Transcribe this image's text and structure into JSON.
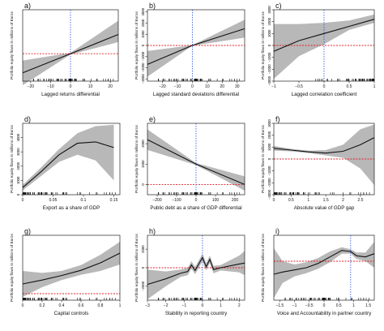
{
  "figure": {
    "ylabel": "Portfolio equity flows in millions of Euros",
    "colors": {
      "band": "#b8b8b8",
      "line": "#111111",
      "zero_ref": "#e0202a",
      "mean_ref": "#2a4fd8",
      "axis": "#222222"
    }
  },
  "chart_data": [
    {
      "panel": "a)",
      "type": "line",
      "xlabel": "Lagged returns differential",
      "xlim": [
        -24,
        24
      ],
      "ylim": [
        -1000,
        1600
      ],
      "xticks": [
        -20,
        -10,
        0,
        10,
        20
      ],
      "yticks": [],
      "x": [
        -24,
        0,
        24
      ],
      "y": [
        -700,
        0,
        700
      ],
      "lower": [
        -1150,
        -30,
        420
      ],
      "upper": [
        -250,
        30,
        1200
      ],
      "hline": 0,
      "vline": 0,
      "rug": "center"
    },
    {
      "panel": "b)",
      "type": "line",
      "xlabel": "Lagged standard deviations differential",
      "xlim": [
        -30,
        35
      ],
      "ylim": [
        -3200,
        3200
      ],
      "xticks": [
        -20,
        -10,
        0,
        10,
        20,
        30
      ],
      "yticks": [
        -3000,
        -2000,
        -1000,
        0,
        1000,
        2000,
        3000
      ],
      "x": [
        -30,
        0,
        35
      ],
      "y": [
        -1700,
        0,
        1500
      ],
      "lower": [
        -2800,
        -30,
        700
      ],
      "upper": [
        -500,
        30,
        2300
      ],
      "hline": 0,
      "vline": 0,
      "rug": "center"
    },
    {
      "panel": "c)",
      "type": "line",
      "xlabel": "Lagged correlation coefficient",
      "xlim": [
        -1,
        1
      ],
      "ylim": [
        -3000,
        3000
      ],
      "xticks": [
        -1,
        -0.5,
        0,
        0.5,
        1
      ],
      "yticks": [
        -3000,
        -2000,
        -1000,
        0,
        1000,
        2000,
        3000
      ],
      "x": [
        -1,
        -0.5,
        0,
        0.5,
        1
      ],
      "y": [
        -500,
        400,
        1000,
        1600,
        2200
      ],
      "lower": [
        -2800,
        -900,
        100,
        1300,
        1900
      ],
      "upper": [
        1800,
        1800,
        1900,
        2100,
        2600
      ],
      "hline": 0,
      "vline": 0,
      "rug": "right"
    },
    {
      "panel": "d)",
      "type": "line",
      "xlabel": "Export as a share of GDP",
      "xlim": [
        0,
        0.16
      ],
      "ylim": [
        0,
        5000
      ],
      "xticks": [
        0,
        0.05,
        0.1,
        0.15
      ],
      "yticks": [
        0,
        1000,
        2000,
        3000,
        4000
      ],
      "x": [
        0,
        0.03,
        0.06,
        0.09,
        0.12,
        0.15
      ],
      "y": [
        500,
        1600,
        2800,
        3600,
        3700,
        3300
      ],
      "lower": [
        300,
        1300,
        2300,
        2800,
        2400,
        1000
      ],
      "upper": [
        700,
        1900,
        3200,
        4300,
        4800,
        4900
      ],
      "hline": null,
      "vline": null,
      "rug": "left"
    },
    {
      "panel": "e)",
      "type": "line",
      "xlabel": "Public debt as a share of GDP differential",
      "xlim": [
        -250,
        250
      ],
      "ylim": [
        -500,
        3000
      ],
      "xticks": [
        -200,
        -100,
        0,
        100,
        200
      ],
      "yticks": [
        0,
        1000,
        2000
      ],
      "x": [
        -250,
        0,
        250
      ],
      "y": [
        2200,
        1000,
        0
      ],
      "lower": [
        1700,
        950,
        -300
      ],
      "upper": [
        2700,
        1050,
        400
      ],
      "hline": 0,
      "vline": 0,
      "rug": "center"
    },
    {
      "panel": "f)",
      "type": "line",
      "xlabel": "Absolute value of GDP gap",
      "xlim": [
        0,
        2.9
      ],
      "ylim": [
        -3000,
        3000
      ],
      "xticks": [
        0,
        0.5,
        1,
        1.5,
        2,
        2.5
      ],
      "yticks": [
        -3000,
        -2000,
        -1000,
        0,
        1000,
        2000,
        3000
      ],
      "x": [
        0,
        0.5,
        1,
        1.5,
        2,
        2.5,
        2.9
      ],
      "y": [
        900,
        750,
        600,
        500,
        650,
        1200,
        1800
      ],
      "lower": [
        700,
        650,
        500,
        300,
        100,
        -800,
        -2200
      ],
      "upper": [
        1100,
        850,
        700,
        750,
        1200,
        2500,
        2900
      ],
      "hline": 0,
      "vline": null,
      "rug": "left"
    },
    {
      "panel": "g)",
      "type": "line",
      "xlabel": "Capital controls",
      "xlim": [
        0,
        1
      ],
      "ylim": [
        -200,
        1800
      ],
      "xticks": [
        0,
        0.2,
        0.4,
        0.6,
        0.8,
        1
      ],
      "yticks": [],
      "x": [
        0,
        0.2,
        0.4,
        0.6,
        0.8,
        1
      ],
      "y": [
        300,
        420,
        560,
        720,
        950,
        1250
      ],
      "lower": [
        -100,
        200,
        420,
        580,
        700,
        900
      ],
      "upper": [
        700,
        640,
        700,
        880,
        1200,
        1600
      ],
      "hline": 0,
      "vline": null,
      "rug": "left"
    },
    {
      "panel": "h)",
      "type": "line",
      "xlabel": "Stability in reporting country",
      "xlim": [
        -3,
        2.3
      ],
      "ylim": [
        -3500,
        3500
      ],
      "xticks": [
        -3,
        -2,
        -1,
        0,
        1,
        2
      ],
      "yticks": [
        -2000,
        0,
        2000
      ],
      "x": [
        -3,
        -2,
        -1.2,
        -0.8,
        -0.6,
        -0.4,
        -0.2,
        0,
        0.2,
        0.4,
        0.6,
        1,
        2,
        2.3
      ],
      "y": [
        -1800,
        -1200,
        -600,
        -400,
        300,
        -300,
        400,
        1100,
        100,
        900,
        -200,
        0,
        400,
        500
      ],
      "lower": [
        -3400,
        -2000,
        -1000,
        -800,
        -100,
        -700,
        0,
        700,
        -300,
        500,
        -600,
        -300,
        -500,
        -800
      ],
      "upper": [
        -200,
        -400,
        -200,
        0,
        700,
        100,
        800,
        1500,
        500,
        1300,
        200,
        300,
        1300,
        1800
      ],
      "hline": 0,
      "vline": 0,
      "rug": "center"
    },
    {
      "panel": "i)",
      "type": "line",
      "xlabel": "Voice and Accountability in partner country",
      "xlim": [
        -1.7,
        1.7
      ],
      "ylim": [
        -1800,
        1200
      ],
      "xticks": [
        -1.5,
        -1,
        -0.5,
        0,
        0.5,
        1,
        1.5
      ],
      "yticks": [],
      "x": [
        -1.7,
        -1.4,
        -1,
        -0.6,
        -0.2,
        0.2,
        0.6,
        0.9,
        1.1,
        1.4,
        1.7
      ],
      "y": [
        -600,
        -500,
        -400,
        -300,
        -100,
        200,
        500,
        450,
        250,
        200,
        350
      ],
      "lower": [
        -1700,
        -1000,
        -700,
        -550,
        -350,
        -50,
        350,
        350,
        100,
        0,
        -300
      ],
      "upper": [
        600,
        0,
        -150,
        -50,
        150,
        450,
        650,
        550,
        400,
        400,
        900
      ],
      "hline": 0,
      "vline": 0.9,
      "rug": "center"
    }
  ]
}
